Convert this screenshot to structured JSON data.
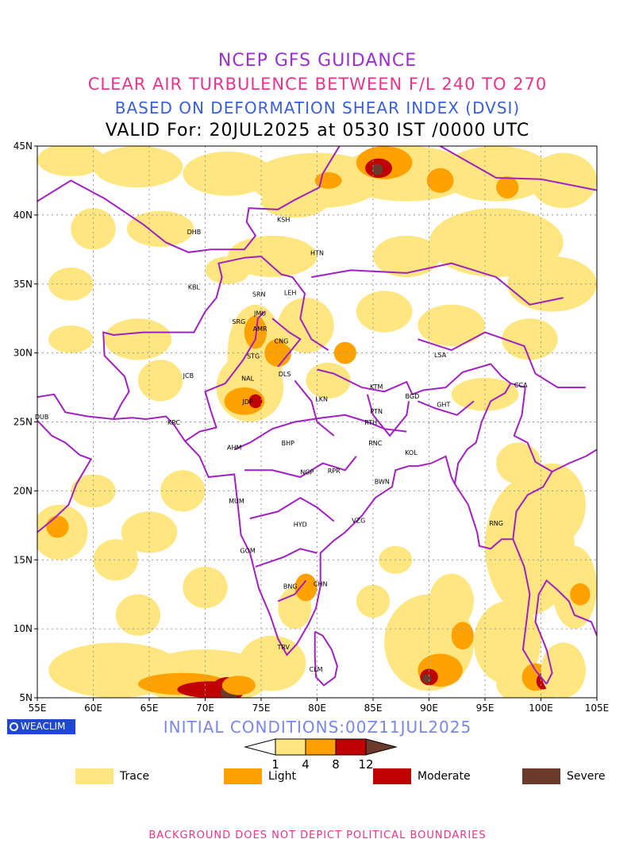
{
  "header": {
    "line1": "NCEP GFS GUIDANCE",
    "line2": "CLEAR AIR TURBULENCE BETWEEN F/L 240 TO 270",
    "line3": "BASED ON DEFORMATION SHEAR INDEX (DVSI)",
    "line4": "VALID For: 20JUL2025 at 0530 IST /0000 UTC"
  },
  "map": {
    "lat_labels": [
      "45N",
      "40N",
      "35N",
      "30N",
      "25N",
      "20N",
      "15N",
      "10N",
      "5N"
    ],
    "lon_labels": [
      "55E",
      "60E",
      "65E",
      "70E",
      "75E",
      "80E",
      "85E",
      "90E",
      "95E",
      "100E",
      "105E"
    ],
    "stations": [
      {
        "code": "KSH",
        "lon": 77.0,
        "lat": 39.5
      },
      {
        "code": "DHB",
        "lon": 69.0,
        "lat": 38.6
      },
      {
        "code": "HTN",
        "lon": 80.0,
        "lat": 37.1
      },
      {
        "code": "KBL",
        "lon": 69.0,
        "lat": 34.6
      },
      {
        "code": "SRN",
        "lon": 74.8,
        "lat": 34.1
      },
      {
        "code": "LEH",
        "lon": 77.6,
        "lat": 34.2
      },
      {
        "code": "JMU",
        "lon": 74.9,
        "lat": 32.7
      },
      {
        "code": "SRG",
        "lon": 73.0,
        "lat": 32.1
      },
      {
        "code": "AMR",
        "lon": 74.9,
        "lat": 31.6
      },
      {
        "code": "CNG",
        "lon": 76.8,
        "lat": 30.7
      },
      {
        "code": "STG",
        "lon": 74.3,
        "lat": 29.6
      },
      {
        "code": "LSA",
        "lon": 91.0,
        "lat": 29.7
      },
      {
        "code": "JCB",
        "lon": 68.5,
        "lat": 28.2
      },
      {
        "code": "DLS",
        "lon": 77.1,
        "lat": 28.3
      },
      {
        "code": "NAL",
        "lon": 73.8,
        "lat": 28.0
      },
      {
        "code": "KTM",
        "lon": 85.3,
        "lat": 27.4
      },
      {
        "code": "CCA",
        "lon": 98.2,
        "lat": 27.5
      },
      {
        "code": "BGD",
        "lon": 88.5,
        "lat": 26.7
      },
      {
        "code": "JDP",
        "lon": 73.8,
        "lat": 26.3
      },
      {
        "code": "LKN",
        "lon": 80.4,
        "lat": 26.5
      },
      {
        "code": "GHT",
        "lon": 91.3,
        "lat": 26.1
      },
      {
        "code": "DUB",
        "lon": 55.4,
        "lat": 25.2
      },
      {
        "code": "PTN",
        "lon": 85.3,
        "lat": 25.6
      },
      {
        "code": "KRC",
        "lon": 67.2,
        "lat": 24.8
      },
      {
        "code": "RTH",
        "lon": 84.8,
        "lat": 24.8
      },
      {
        "code": "BHP",
        "lon": 77.4,
        "lat": 23.3
      },
      {
        "code": "AHM",
        "lon": 72.6,
        "lat": 23.0
      },
      {
        "code": "RNC",
        "lon": 85.2,
        "lat": 23.3
      },
      {
        "code": "KOL",
        "lon": 88.4,
        "lat": 22.6
      },
      {
        "code": "NGP",
        "lon": 79.1,
        "lat": 21.2
      },
      {
        "code": "RPR",
        "lon": 81.5,
        "lat": 21.3
      },
      {
        "code": "BWN",
        "lon": 85.8,
        "lat": 20.5
      },
      {
        "code": "MUM",
        "lon": 72.8,
        "lat": 19.1
      },
      {
        "code": "HYD",
        "lon": 78.5,
        "lat": 17.4
      },
      {
        "code": "VZG",
        "lon": 83.7,
        "lat": 17.7
      },
      {
        "code": "RNG",
        "lon": 96.0,
        "lat": 17.5
      },
      {
        "code": "GOM",
        "lon": 73.8,
        "lat": 15.5
      },
      {
        "code": "CHN",
        "lon": 80.3,
        "lat": 13.1
      },
      {
        "code": "BNG",
        "lon": 77.6,
        "lat": 12.9
      },
      {
        "code": "TRV",
        "lon": 77.0,
        "lat": 8.5
      },
      {
        "code": "CLM",
        "lon": 79.9,
        "lat": 6.9
      }
    ]
  },
  "branding": {
    "label": "WEACLIM",
    "icon": "globe-circle-icon"
  },
  "initial_conditions": "INITIAL CONDITIONS:00Z11JUL2025",
  "colorbar": {
    "ticks": [
      "1",
      "4",
      "8",
      "12"
    ],
    "colors": [
      "#ffffff",
      "#ffe680",
      "#ff9f00",
      "#c00000",
      "#6b3a2a"
    ]
  },
  "legend": {
    "items": [
      {
        "label": "Trace",
        "color": "#ffe680"
      },
      {
        "label": "Light",
        "color": "#ffa200"
      },
      {
        "label": "Moderate",
        "color": "#c00000"
      },
      {
        "label": "Severe",
        "color": "#6b3a2a"
      }
    ]
  },
  "footer": "BACKGROUND DOES NOT DEPICT POLITICAL BOUNDARIES"
}
